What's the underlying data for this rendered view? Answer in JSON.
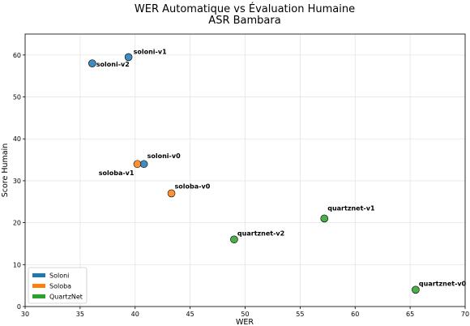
{
  "chart_data": {
    "type": "scatter",
    "title": "WER Automatique vs Évaluation Humaine",
    "subtitle": "ASR Bambara",
    "xlabel": "WER",
    "ylabel": "Score Humain",
    "xlim": [
      30,
      70
    ],
    "ylim": [
      0,
      65
    ],
    "xticks": [
      30,
      35,
      40,
      45,
      50,
      55,
      60,
      65,
      70
    ],
    "yticks": [
      0,
      10,
      20,
      30,
      40,
      50,
      60
    ],
    "grid": true,
    "legend_position": "bottom-left",
    "series": [
      {
        "name": "Soloni",
        "color": "#1f77b4",
        "points": [
          {
            "label": "soloni-v1",
            "x": 39.4,
            "y": 59.5
          },
          {
            "label": "soloni-v2",
            "x": 36.1,
            "y": 58.0
          },
          {
            "label": "soloni-v0",
            "x": 40.8,
            "y": 34.0
          }
        ]
      },
      {
        "name": "Soloba",
        "color": "#ff7f0e",
        "points": [
          {
            "label": "soloba-v1",
            "x": 40.2,
            "y": 34.0
          },
          {
            "label": "soloba-v0",
            "x": 43.3,
            "y": 27.0
          }
        ]
      },
      {
        "name": "QuartzNet",
        "color": "#2ca02c",
        "points": [
          {
            "label": "quartznet-v1",
            "x": 57.2,
            "y": 21.0
          },
          {
            "label": "quartznet-v2",
            "x": 49.0,
            "y": 16.0
          },
          {
            "label": "quartznet-v0",
            "x": 65.5,
            "y": 4.0
          }
        ]
      }
    ]
  }
}
